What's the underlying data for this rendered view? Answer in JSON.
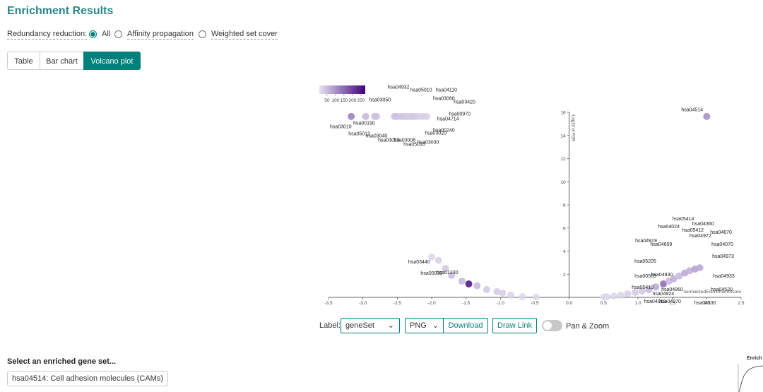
{
  "header": {
    "title": "Enrichment Results"
  },
  "redundancy": {
    "label": "Redundancy reduction:",
    "options": [
      "All",
      "Affinity propagation",
      "Weighted set cover"
    ],
    "selected": 0
  },
  "tabs": {
    "items": [
      "Table",
      "Bar chart",
      "Volcano plot"
    ],
    "active": 2
  },
  "chart_data": {
    "type": "scatter",
    "xlabel": "normalizedEnrichmentScore",
    "ylabel": "-Log10 of FDR",
    "xlim": [
      -3.5,
      2.5
    ],
    "ylim": [
      0,
      16
    ],
    "xticks": [
      -3.5,
      {
        "value": -3,
        "label": "-3.0"
      },
      -2.5,
      {
        "value": -2,
        "label": "-2.0"
      },
      -1.5,
      {
        "value": -1,
        "label": "-1.0"
      },
      -0.5,
      {
        "value": 0,
        "label": "0.0"
      },
      0.5,
      {
        "value": 1,
        "label": "1.0"
      },
      1.5,
      {
        "value": 2,
        "label": "2.0"
      },
      2.5
    ],
    "yticks": [
      2,
      4,
      6,
      8,
      10,
      12,
      14,
      16
    ],
    "points": {
      "x": [
        -3.17,
        -2.96,
        -2.83,
        -2.8,
        -2.54,
        -2.51,
        -2.46,
        -2.42,
        -2.38,
        -2.35,
        -2.31,
        -2.27,
        -2.23,
        -2.18,
        -2.12,
        -2.07,
        -2.0,
        -1.9,
        -1.8,
        -1.71,
        -1.56,
        -1.46,
        -1.34,
        -1.2,
        -1.05,
        -0.97,
        -0.85,
        -0.68,
        -0.48,
        0.5,
        0.55,
        0.65,
        0.75,
        0.85,
        0.96,
        1.06,
        1.16,
        1.26,
        1.37,
        1.45,
        1.52,
        1.6,
        1.68,
        1.75,
        1.83,
        1.9,
        2.0
      ],
      "y": [
        15.64,
        15.64,
        15.64,
        15.64,
        15.64,
        15.64,
        15.64,
        15.64,
        15.64,
        15.64,
        15.64,
        15.64,
        15.64,
        15.64,
        15.64,
        15.64,
        3.5,
        3.2,
        2.5,
        1.9,
        1.4,
        1.16,
        1.0,
        0.67,
        0.5,
        0.37,
        0.2,
        0.06,
        0.03,
        0.02,
        0.06,
        0.12,
        0.2,
        0.3,
        0.43,
        0.55,
        0.67,
        0.9,
        1.16,
        1.4,
        1.6,
        1.85,
        2.1,
        2.3,
        2.44,
        2.56,
        15.64
      ],
      "genes": [
        130,
        60,
        50,
        45,
        50,
        45,
        40,
        40,
        40,
        35,
        35,
        40,
        35,
        30,
        30,
        30,
        20,
        30,
        40,
        50,
        60,
        260,
        60,
        40,
        35,
        30,
        25,
        20,
        15,
        15,
        20,
        20,
        25,
        30,
        35,
        40,
        60,
        80,
        150,
        60,
        70,
        60,
        80,
        70,
        90,
        80,
        110
      ]
    },
    "color_scale": {
      "lim": [
        5,
        275
      ],
      "ticks": [
        50,
        100,
        150,
        200,
        250
      ],
      "colors": [
        "#e6e3f2",
        "#3f007d"
      ]
    },
    "annotations": [
      {
        "text": "hsa04932",
        "x": -2.64,
        "y": 18.05
      },
      {
        "text": "hsa05010",
        "x": -2.31,
        "y": 17.8
      },
      {
        "text": "hsa04110",
        "x": -1.94,
        "y": 17.8
      },
      {
        "text": "hsa03050",
        "x": -2.91,
        "y": 16.95
      },
      {
        "text": "hsa03060",
        "x": -1.98,
        "y": 17.07
      },
      {
        "text": "hsa03420",
        "x": -1.68,
        "y": 16.77
      },
      {
        "text": "hsa00970",
        "x": -1.75,
        "y": 15.73
      },
      {
        "text": "hsa04714",
        "x": -1.92,
        "y": 15.3
      },
      {
        "text": "hsa03010",
        "x": -3.48,
        "y": 14.63
      },
      {
        "text": "hsa00190",
        "x": -3.14,
        "y": 14.94
      },
      {
        "text": "hsa00240",
        "x": -1.98,
        "y": 14.33
      },
      {
        "text": "hsa03020",
        "x": -2.1,
        "y": 14.09
      },
      {
        "text": "hsa05012",
        "x": -3.21,
        "y": 14.02
      },
      {
        "text": "hsa03040",
        "x": -2.96,
        "y": 13.84
      },
      {
        "text": "hsa03013",
        "x": -2.78,
        "y": 13.48
      },
      {
        "text": "hsa03008",
        "x": -2.55,
        "y": 13.48
      },
      {
        "text": "hsa03030",
        "x": -2.21,
        "y": 13.29
      },
      {
        "text": "hsa05016",
        "x": -2.41,
        "y": 13.11
      },
      {
        "text": "hsa04514",
        "x": 1.63,
        "y": 16.1
      },
      {
        "text": "hsa05414",
        "x": 1.5,
        "y": 6.65
      },
      {
        "text": "hsa04360",
        "x": 1.79,
        "y": 6.22
      },
      {
        "text": "hsa04024",
        "x": 1.29,
        "y": 5.98
      },
      {
        "text": "hsa05412",
        "x": 1.64,
        "y": 5.67
      },
      {
        "text": "hsa04670",
        "x": 2.05,
        "y": 5.49
      },
      {
        "text": "hsa04972",
        "x": 1.75,
        "y": 5.18
      },
      {
        "text": "hsa04919",
        "x": 0.96,
        "y": 4.76
      },
      {
        "text": "hsa04659",
        "x": 1.18,
        "y": 4.45
      },
      {
        "text": "hsa04070",
        "x": 2.07,
        "y": 4.45
      },
      {
        "text": "hsa04973",
        "x": 2.08,
        "y": 3.41
      },
      {
        "text": "hsa05205",
        "x": 0.95,
        "y": 2.99
      },
      {
        "text": "hsa00565",
        "x": 0.95,
        "y": 1.71
      },
      {
        "text": "hsa04930",
        "x": 1.19,
        "y": 1.83
      },
      {
        "text": "hsa04933",
        "x": 2.09,
        "y": 1.71
      },
      {
        "text": "hsa05410",
        "x": 0.91,
        "y": 0.73
      },
      {
        "text": "hsa04960",
        "x": 1.34,
        "y": 0.55
      },
      {
        "text": "hsa04924",
        "x": 1.21,
        "y": 0.18
      },
      {
        "text": "hsa04520",
        "x": 2.06,
        "y": 0.55
      },
      {
        "text": "hsa04913",
        "x": 1.09,
        "y": -0.49
      },
      {
        "text": "hsa04970",
        "x": 1.31,
        "y": -0.49
      },
      {
        "text": "hsa04530",
        "x": 1.82,
        "y": -0.61
      },
      {
        "text": "hsa03440",
        "x": -2.34,
        "y": 2.93
      },
      {
        "text": "hsa00030",
        "x": -2.16,
        "y": 1.95
      },
      {
        "text": "hsa01230",
        "x": -1.93,
        "y": 2.01
      }
    ]
  },
  "controls": {
    "label": "Label:",
    "label_select": "geneSet",
    "format_select": "PNG",
    "download": "Download",
    "draw_link": "Draw Link",
    "toggle": "Pan & Zoom",
    "toggle_on": false
  },
  "gene_set": {
    "prompt": "Select an enriched gene set...",
    "value": "hsa04514: Cell adhesion molecules (CAMs)"
  },
  "side_plot": {
    "title": "Enrich"
  }
}
